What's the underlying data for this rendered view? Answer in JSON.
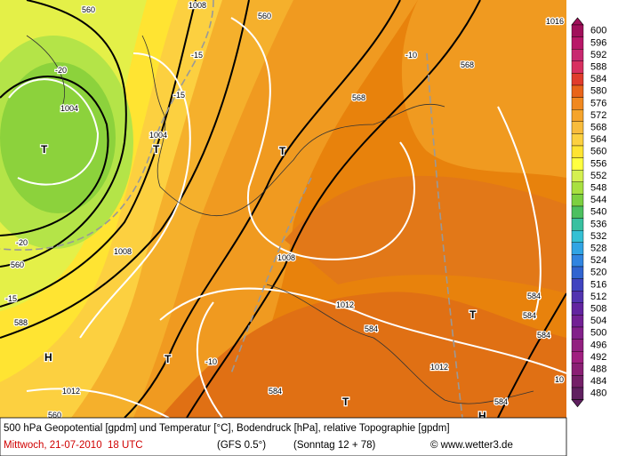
{
  "map": {
    "labels": [
      "560",
      "1008",
      "560",
      "1016",
      "-15",
      "-20",
      "1004",
      "T",
      "1004",
      "T",
      "-15",
      "-10",
      "568",
      "568",
      "T",
      "-20",
      "560",
      "1008",
      "-15",
      "588",
      "1008",
      "1012",
      "584",
      "H",
      "T",
      "-10",
      "1012",
      "584",
      "T",
      "1012",
      "T",
      "584",
      "584",
      "584",
      "584",
      "H",
      "10",
      "560"
    ]
  },
  "legend": {
    "labels": [
      "600",
      "596",
      "592",
      "588",
      "584",
      "580",
      "576",
      "572",
      "568",
      "564",
      "560",
      "556",
      "552",
      "548",
      "544",
      "540",
      "536",
      "532",
      "528",
      "524",
      "520",
      "516",
      "512",
      "508",
      "504",
      "500",
      "496",
      "492",
      "488",
      "484",
      "480"
    ],
    "colors": [
      "#a0105a",
      "#b81868",
      "#c82870",
      "#d83060",
      "#e03c2c",
      "#e8641a",
      "#f08820",
      "#f5a42c",
      "#f8bc3c",
      "#fcd040",
      "#ffe432",
      "#ffff40",
      "#d4f050",
      "#a8e040",
      "#7cd040",
      "#4cc060",
      "#38c0a0",
      "#34c0d4",
      "#30a4e4",
      "#3084e0",
      "#3064d0",
      "#4044c0",
      "#5234b0",
      "#6224a0",
      "#722094",
      "#82208a",
      "#922080",
      "#a02080",
      "#8a2074",
      "#742068",
      "#602060"
    ]
  },
  "footer": {
    "line1": "500 hPa Geopotential [gpdm] und Temperatur [°C], Bodendruck [hPa], relative Topographie [gpdm]",
    "date": "Mittwoch, 21-07-2010  18 UTC",
    "model": "(GFS 0.5°)",
    "run": "(Sonntag 12 + 78)",
    "credit": "© www.wetter3.de"
  }
}
